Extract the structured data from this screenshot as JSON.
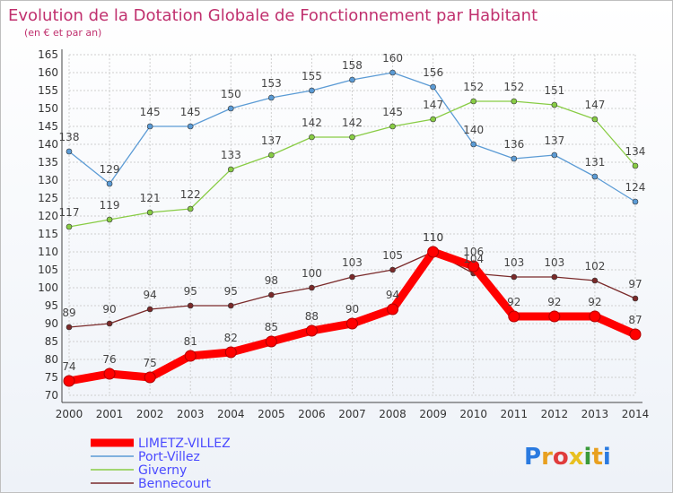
{
  "chart_data": {
    "type": "line",
    "title": "Evolution de la Dotation Globale de Fonctionnement par Habitant",
    "subtitle": "(en € et par an)",
    "xlabel": "",
    "ylabel": "",
    "x": [
      "2000",
      "2001",
      "2002",
      "2003",
      "2004",
      "2005",
      "2006",
      "2007",
      "2008",
      "2009",
      "2010",
      "2011",
      "2012",
      "2013",
      "2014"
    ],
    "ylim": [
      70,
      165
    ],
    "yticks": [
      70,
      75,
      80,
      85,
      90,
      95,
      100,
      105,
      110,
      115,
      120,
      125,
      130,
      135,
      140,
      145,
      150,
      155,
      160,
      165
    ],
    "grid": true,
    "legend_position": "bottom-left",
    "series": [
      {
        "name": "LIMETZ-VILLEZ",
        "color": "#ff0000",
        "values": [
          74,
          76,
          75,
          81,
          82,
          85,
          88,
          90,
          94,
          110,
          106,
          92,
          92,
          92,
          87
        ]
      },
      {
        "name": "Port-Villez",
        "color": "#5b9bd5",
        "values": [
          138,
          129,
          145,
          145,
          150,
          153,
          155,
          158,
          160,
          156,
          140,
          136,
          137,
          131,
          124
        ]
      },
      {
        "name": "Giverny",
        "color": "#88cc44",
        "values": [
          117,
          119,
          121,
          122,
          133,
          137,
          142,
          142,
          145,
          147,
          152,
          152,
          151,
          147,
          134
        ]
      },
      {
        "name": "Bennecourt",
        "color": "#7a2a2a",
        "values": [
          89,
          90,
          94,
          95,
          95,
          98,
          100,
          103,
          105,
          110,
          104,
          103,
          103,
          102,
          97
        ]
      }
    ]
  },
  "logo": {
    "text": "Proxiti",
    "letters": [
      "P",
      "r",
      "o",
      "x",
      "i",
      "t",
      "i"
    ]
  }
}
